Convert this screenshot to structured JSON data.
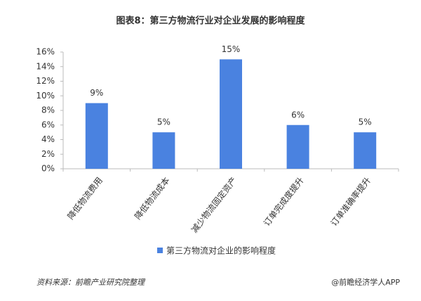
{
  "chart_data": {
    "type": "bar",
    "title": "图表8：第三方物流行业对企业发展的影响程度",
    "categories": [
      "降低物流费用",
      "降低物流成本",
      "减少物流固定资产",
      "订单完成度提升",
      "订单准确率提升"
    ],
    "series": [
      {
        "name": "第三方物流对企业的影响程度",
        "color": "#4a82e0",
        "values": [
          9,
          5,
          15,
          6,
          5
        ],
        "value_labels": [
          "9%",
          "5%",
          "15%",
          "6%",
          "5%"
        ]
      }
    ],
    "ylim": [
      0,
      16
    ],
    "yticks": [
      {
        "value": 0,
        "label": "0%"
      },
      {
        "value": 2,
        "label": "2%"
      },
      {
        "value": 4,
        "label": "4%"
      },
      {
        "value": 6,
        "label": "6%"
      },
      {
        "value": 8,
        "label": "8%"
      },
      {
        "value": 10,
        "label": "10%"
      },
      {
        "value": 12,
        "label": "12%"
      },
      {
        "value": 14,
        "label": "14%"
      },
      {
        "value": 16,
        "label": "16%"
      }
    ],
    "grid": false,
    "source": "资料来源：前瞻产业研究院整理",
    "credit": "@前瞻经济学人APP"
  }
}
